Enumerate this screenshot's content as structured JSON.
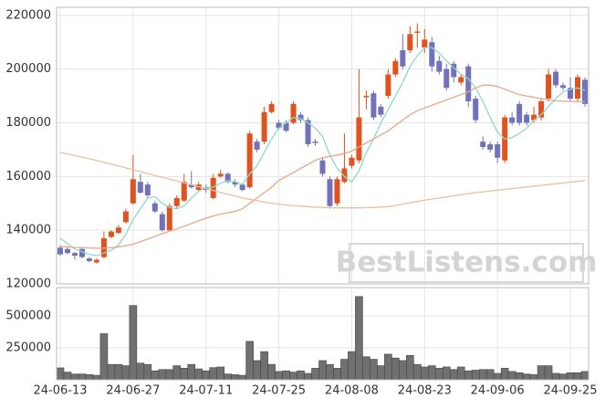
{
  "chart_data": [
    {
      "type": "candlestick",
      "open": [
        133500,
        133000,
        131500,
        133000,
        129500,
        128000,
        130000,
        137500,
        139000,
        143000,
        150000,
        158000,
        157000,
        150000,
        146000,
        140000,
        149000,
        151000,
        157000,
        155000,
        156000,
        152000,
        160000,
        161000,
        158000,
        157000,
        156000,
        173000,
        173000,
        184000,
        180000,
        180000,
        180000,
        183000,
        181000,
        173000,
        166000,
        159000,
        150000,
        158000,
        164000,
        166000,
        189500,
        191000,
        186000,
        190000,
        198000,
        207000,
        207000,
        213500,
        208000,
        210000,
        203000,
        200000,
        202000,
        195000,
        201000,
        189000,
        173000,
        172000,
        172000,
        166000,
        182000,
        187000,
        183000,
        181000,
        182000,
        189000,
        199000,
        194000,
        193000,
        189000,
        196000
      ],
      "high": [
        134500,
        134000,
        132000,
        133500,
        130000,
        129500,
        139500,
        140000,
        142000,
        148000,
        168000,
        161000,
        158000,
        151000,
        147000,
        150000,
        153000,
        161000,
        162000,
        158000,
        157000,
        161000,
        162500,
        161500,
        159000,
        157500,
        177000,
        174000,
        186000,
        188000,
        181000,
        181000,
        188000,
        184000,
        182000,
        174000,
        167000,
        160000,
        160000,
        176000,
        168000,
        200000,
        192000,
        192000,
        187000,
        200000,
        204000,
        213000,
        216000,
        217000,
        215000,
        212000,
        205000,
        202000,
        203000,
        198000,
        202000,
        190000,
        175000,
        173000,
        173000,
        183000,
        184000,
        188000,
        184000,
        186000,
        189000,
        200000,
        200000,
        195000,
        197000,
        198000,
        197000
      ],
      "low": [
        130500,
        131000,
        129000,
        129500,
        128000,
        127500,
        129500,
        137000,
        138500,
        142500,
        149500,
        153500,
        152000,
        146500,
        139500,
        139500,
        148000,
        150500,
        155500,
        154500,
        154000,
        151500,
        159500,
        157500,
        156000,
        154500,
        155500,
        169000,
        172000,
        183500,
        177500,
        176500,
        179500,
        180000,
        171000,
        171500,
        160000,
        148000,
        149000,
        157500,
        163000,
        165000,
        185000,
        181000,
        182000,
        189000,
        197000,
        200000,
        206000,
        208000,
        206000,
        199000,
        198000,
        192000,
        195000,
        194000,
        186000,
        180000,
        170000,
        169000,
        165000,
        165000,
        179000,
        179000,
        179000,
        180000,
        181000,
        188000,
        193000,
        192000,
        188000,
        188000,
        186000
      ],
      "close": [
        131000,
        131500,
        130500,
        130000,
        128500,
        129000,
        137000,
        139500,
        141000,
        147000,
        159000,
        154000,
        153000,
        147000,
        140000,
        149000,
        152000,
        158000,
        156000,
        157000,
        155000,
        159500,
        161000,
        158000,
        157000,
        155000,
        176000,
        170000,
        184000,
        187000,
        178000,
        177000,
        187000,
        181000,
        172000,
        172500,
        161000,
        149000,
        159000,
        163000,
        167000,
        182000,
        190000,
        182000,
        183000,
        198000,
        203000,
        201000,
        213000,
        214000,
        211000,
        201000,
        199000,
        193000,
        197000,
        197000,
        188000,
        181000,
        171000,
        170000,
        167000,
        182000,
        180000,
        180000,
        180000,
        183000,
        188000,
        198000,
        194000,
        193000,
        189000,
        197000,
        187000
      ],
      "up_color": "#e0521e",
      "down_color": "#7272b8",
      "series": [
        {
          "color": "#8fd8c6",
          "values": [
            137000,
            135000,
            133000,
            132000,
            131000,
            130500,
            131500,
            132500,
            134500,
            138500,
            144000,
            148000,
            152000,
            152500,
            150000,
            148500,
            148000,
            149000,
            152000,
            154500,
            156000,
            156000,
            157500,
            158500,
            158000,
            157000,
            161000,
            164000,
            169000,
            174000,
            178000,
            180000,
            182000,
            181500,
            180000,
            178000,
            175000,
            168000,
            163000,
            160000,
            158000,
            162000,
            169000,
            174000,
            180000,
            185000,
            190000,
            195000,
            201000,
            205000,
            208000,
            208000,
            206000,
            203000,
            200500,
            198000,
            196500,
            193000,
            188000,
            182000,
            176500,
            174000,
            174500,
            176000,
            178000,
            181000,
            183000,
            186000,
            189000,
            191500,
            192500,
            193000,
            192000
          ]
        },
        {
          "color": "#eba688",
          "values": [
            134000,
            133800,
            133600,
            133500,
            133400,
            133300,
            133300,
            133500,
            133800,
            134200,
            134800,
            135700,
            136700,
            137700,
            138700,
            139600,
            140500,
            141500,
            142500,
            143500,
            144500,
            145300,
            146000,
            146500,
            147000,
            148000,
            150000,
            152000,
            154000,
            156000,
            158500,
            160000,
            161500,
            163000,
            164500,
            166000,
            167000,
            167500,
            168000,
            168500,
            169500,
            171000,
            172500,
            174000,
            175500,
            177000,
            179000,
            181000,
            183000,
            184500,
            185500,
            186500,
            187500,
            188500,
            189500,
            190500,
            191500,
            193000,
            194000,
            194000,
            193500,
            192500,
            191500,
            190500,
            190000,
            189500,
            189000,
            188500,
            188200,
            188000,
            188000,
            187800,
            187800
          ]
        },
        {
          "color": "#ecbfa0",
          "values": [
            169000,
            168400,
            167800,
            167200,
            166600,
            166000,
            165300,
            164600,
            163900,
            163200,
            162500,
            161800,
            161100,
            160400,
            159700,
            159000,
            158300,
            157600,
            156900,
            156200,
            155500,
            154800,
            154100,
            153400,
            152700,
            152000,
            151500,
            151000,
            150500,
            150000,
            149700,
            149400,
            149200,
            149000,
            148800,
            148600,
            148500,
            148400,
            148300,
            148300,
            148300,
            148300,
            148400,
            148500,
            148600,
            148800,
            149200,
            149700,
            150200,
            150700,
            151200,
            151600,
            152000,
            152400,
            152800,
            153200,
            153600,
            154000,
            154300,
            154600,
            154900,
            155200,
            155500,
            155800,
            156100,
            156400,
            156700,
            157000,
            157300,
            157600,
            157900,
            158200,
            158500
          ]
        }
      ],
      "ylim": [
        120000,
        223000
      ],
      "yticks": [
        120000,
        140000,
        160000,
        180000,
        200000,
        220000
      ],
      "grid": true,
      "watermark": "BestListens.com"
    },
    {
      "type": "bar",
      "categories": [
        "24-06-13",
        null,
        null,
        null,
        null,
        null,
        null,
        null,
        null,
        null,
        "24-06-27",
        null,
        null,
        null,
        null,
        null,
        null,
        null,
        null,
        null,
        "24-07-11",
        null,
        null,
        null,
        null,
        null,
        null,
        null,
        null,
        null,
        "24-07-25",
        null,
        null,
        null,
        null,
        null,
        null,
        null,
        null,
        null,
        "24-08-08",
        null,
        null,
        null,
        null,
        null,
        null,
        null,
        null,
        null,
        "24-08-23",
        null,
        null,
        null,
        null,
        null,
        null,
        null,
        null,
        null,
        "24-09-06",
        null,
        null,
        null,
        null,
        null,
        null,
        null,
        null,
        null,
        "24-09-25",
        null,
        null
      ],
      "values": [
        93000,
        60000,
        45000,
        45000,
        40000,
        35000,
        360000,
        120000,
        120000,
        110000,
        580000,
        130000,
        120000,
        70000,
        80000,
        80000,
        110000,
        90000,
        120000,
        85000,
        70000,
        95000,
        100000,
        45000,
        40000,
        35000,
        300000,
        150000,
        220000,
        120000,
        65000,
        70000,
        60000,
        70000,
        50000,
        90000,
        150000,
        120000,
        90000,
        160000,
        220000,
        650000,
        180000,
        160000,
        110000,
        200000,
        170000,
        150000,
        190000,
        120000,
        100000,
        110000,
        90000,
        100000,
        80000,
        100000,
        70000,
        75000,
        80000,
        80000,
        50000,
        90000,
        65000,
        55000,
        45000,
        40000,
        110000,
        110000,
        50000,
        45000,
        55000,
        55000,
        65000
      ],
      "color": "#707070",
      "ylim": [
        0,
        720000
      ],
      "yticks": [
        250000,
        500000
      ],
      "grid": true
    }
  ]
}
